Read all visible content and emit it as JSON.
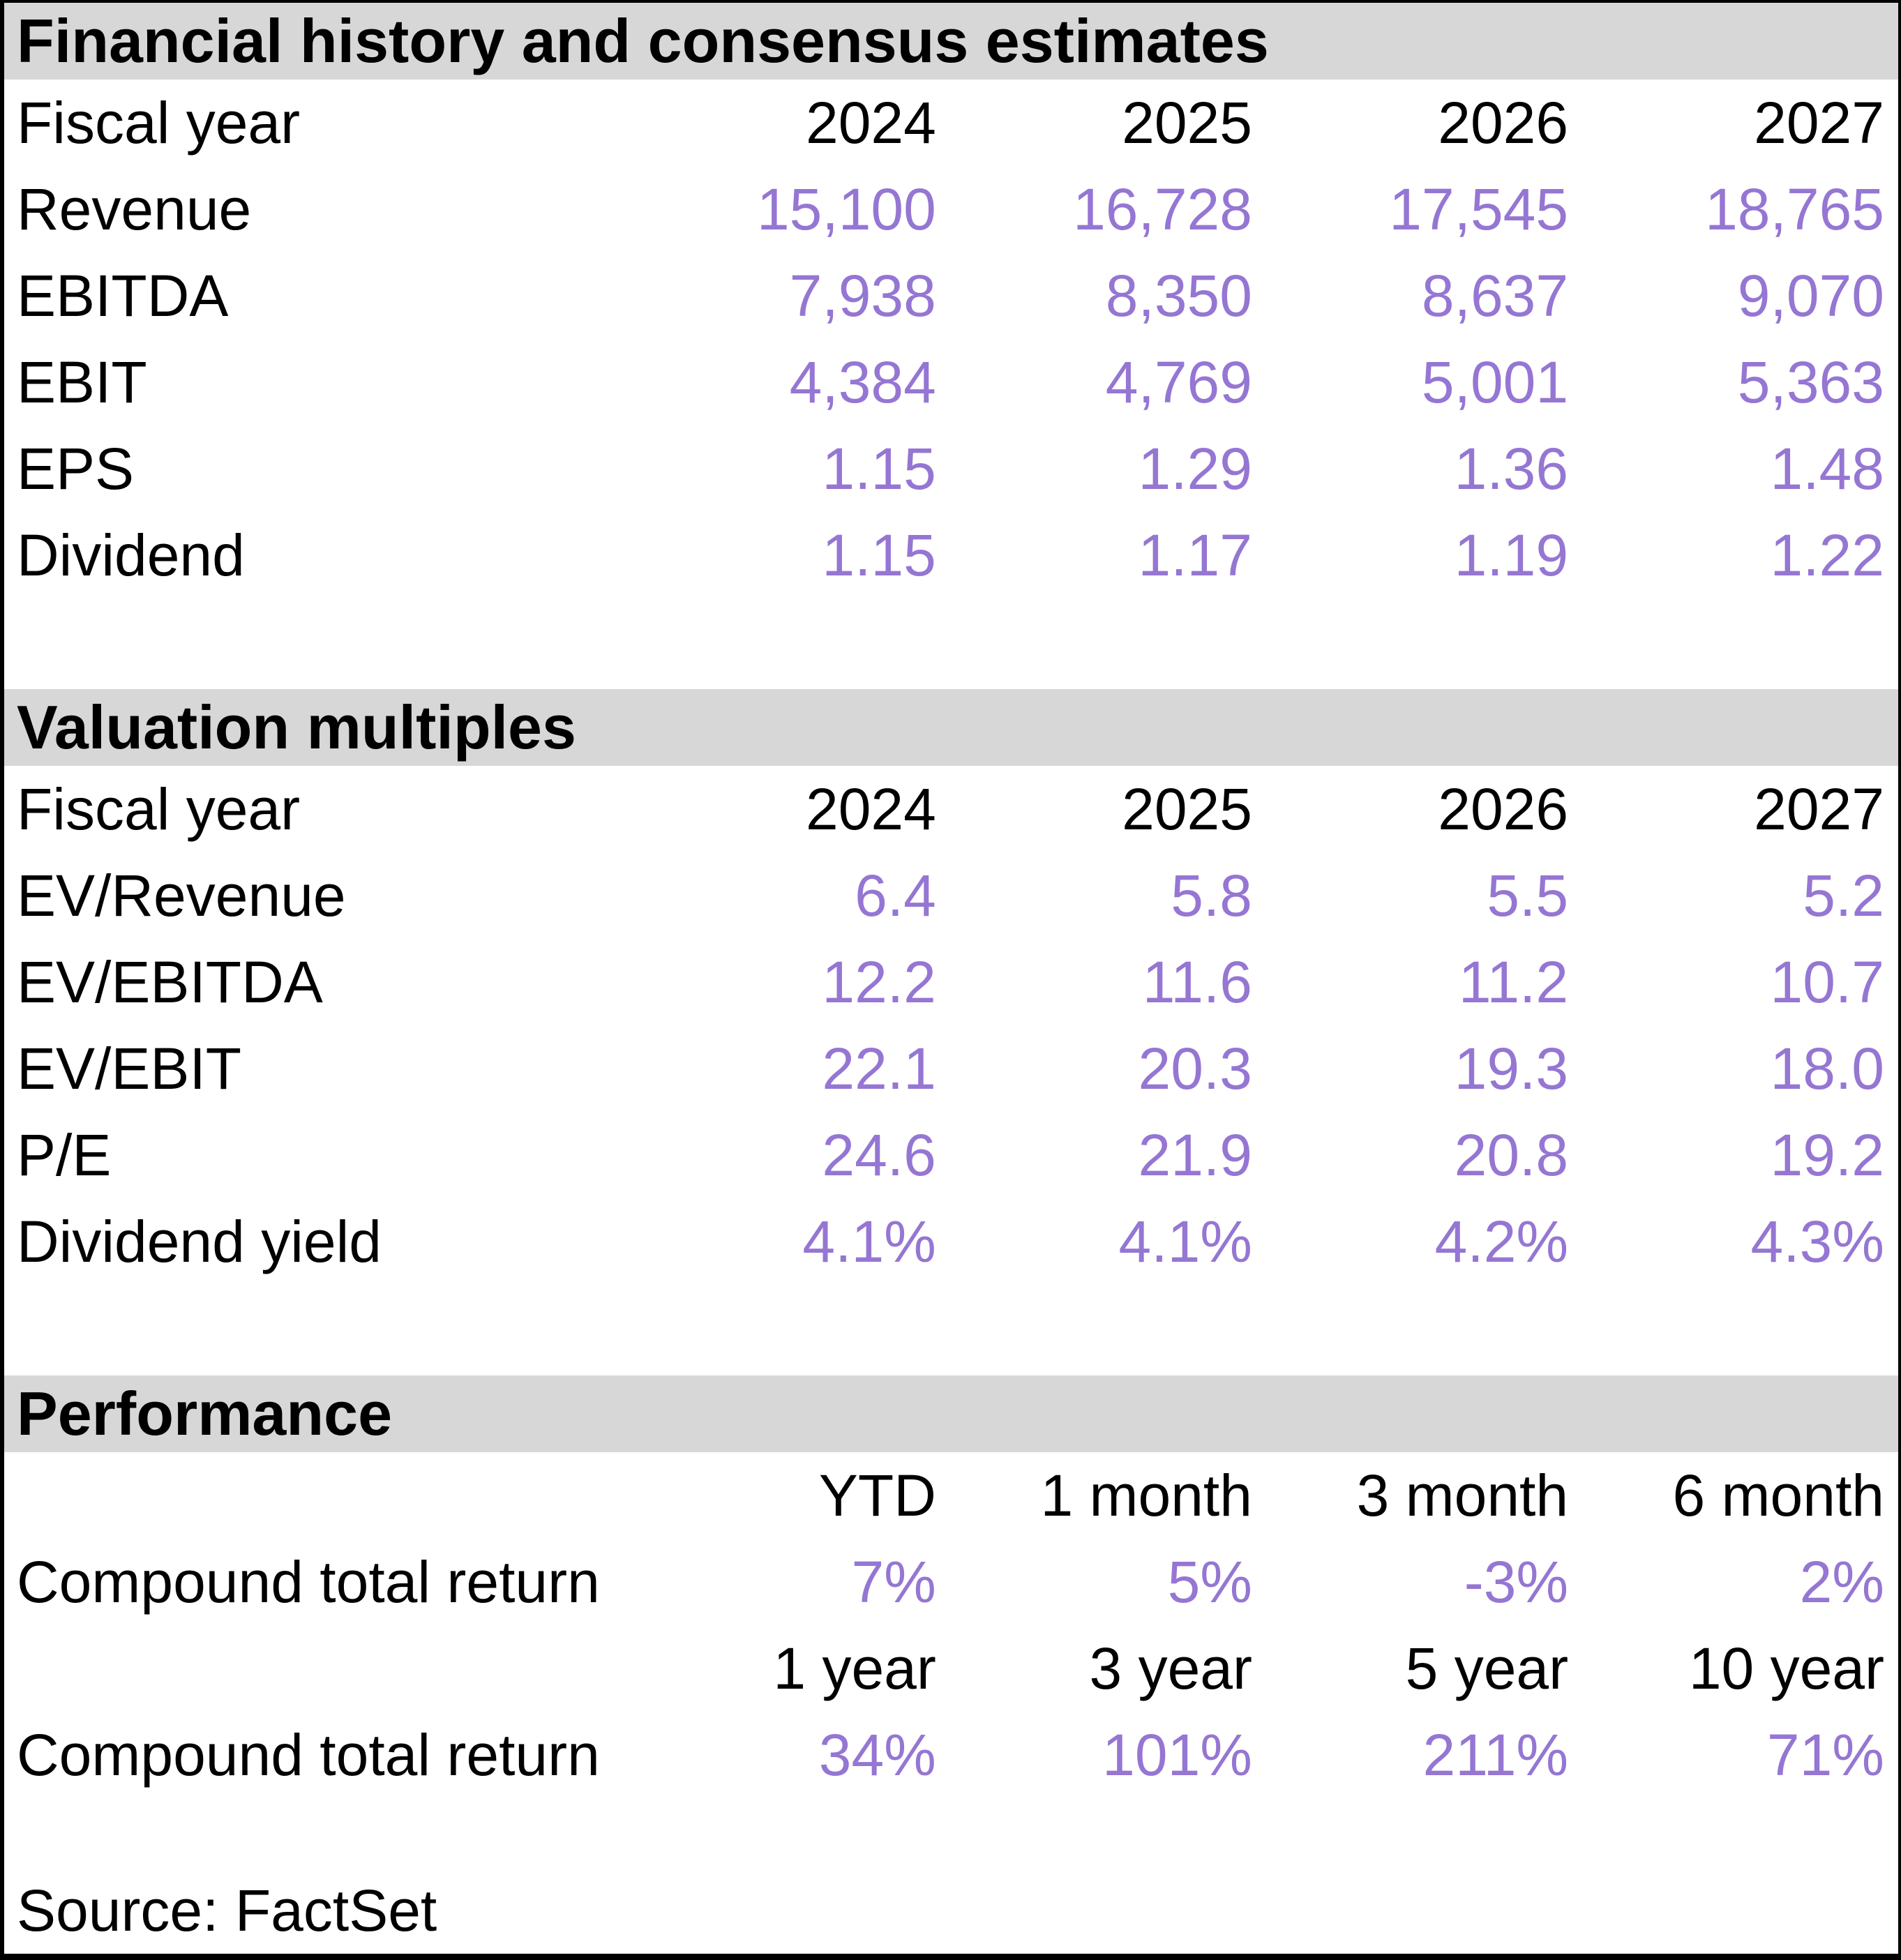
{
  "colors": {
    "accent_purple": "#9576d3",
    "section_header_bg": "#d7d7d7",
    "text": "#000000",
    "frame_border": "#000000"
  },
  "sections": [
    {
      "title": "Financial history and consensus estimates",
      "header_row": {
        "label": "Fiscal year",
        "cols": [
          "2024",
          "2025",
          "2026",
          "2027"
        ]
      },
      "rows": [
        {
          "label": "Revenue",
          "values": [
            "15,100",
            "16,728",
            "17,545",
            "18,765"
          ]
        },
        {
          "label": "EBITDA",
          "values": [
            "7,938",
            "8,350",
            "8,637",
            "9,070"
          ]
        },
        {
          "label": "EBIT",
          "values": [
            "4,384",
            "4,769",
            "5,001",
            "5,363"
          ]
        },
        {
          "label": "EPS",
          "values": [
            "1.15",
            "1.29",
            "1.36",
            "1.48"
          ]
        },
        {
          "label": "Dividend",
          "values": [
            "1.15",
            "1.17",
            "1.19",
            "1.22"
          ]
        }
      ]
    },
    {
      "title": "Valuation multiples",
      "header_row": {
        "label": "Fiscal year",
        "cols": [
          "2024",
          "2025",
          "2026",
          "2027"
        ]
      },
      "rows": [
        {
          "label": "EV/Revenue",
          "values": [
            "6.4",
            "5.8",
            "5.5",
            "5.2"
          ]
        },
        {
          "label": "EV/EBITDA",
          "values": [
            "12.2",
            "11.6",
            "11.2",
            "10.7"
          ]
        },
        {
          "label": "EV/EBIT",
          "values": [
            "22.1",
            "20.3",
            "19.3",
            "18.0"
          ]
        },
        {
          "label": "P/E",
          "values": [
            "24.6",
            "21.9",
            "20.8",
            "19.2"
          ]
        },
        {
          "label": "Dividend yield",
          "values": [
            "4.1%",
            "4.1%",
            "4.2%",
            "4.3%"
          ]
        }
      ]
    },
    {
      "title": "Performance",
      "groups": [
        {
          "header": {
            "cols": [
              "YTD",
              "1 month",
              "3 month",
              "6 month"
            ]
          },
          "row": {
            "label": "Compound total return",
            "values": [
              "7%",
              "5%",
              "-3%",
              "2%"
            ]
          }
        },
        {
          "header": {
            "cols": [
              "1 year",
              "3 year",
              "5 year",
              "10 year"
            ]
          },
          "row": {
            "label": "Compound total return",
            "values": [
              "34%",
              "101%",
              "211%",
              "71%"
            ]
          }
        }
      ]
    }
  ],
  "footer": {
    "source": "Source: FactSet"
  }
}
